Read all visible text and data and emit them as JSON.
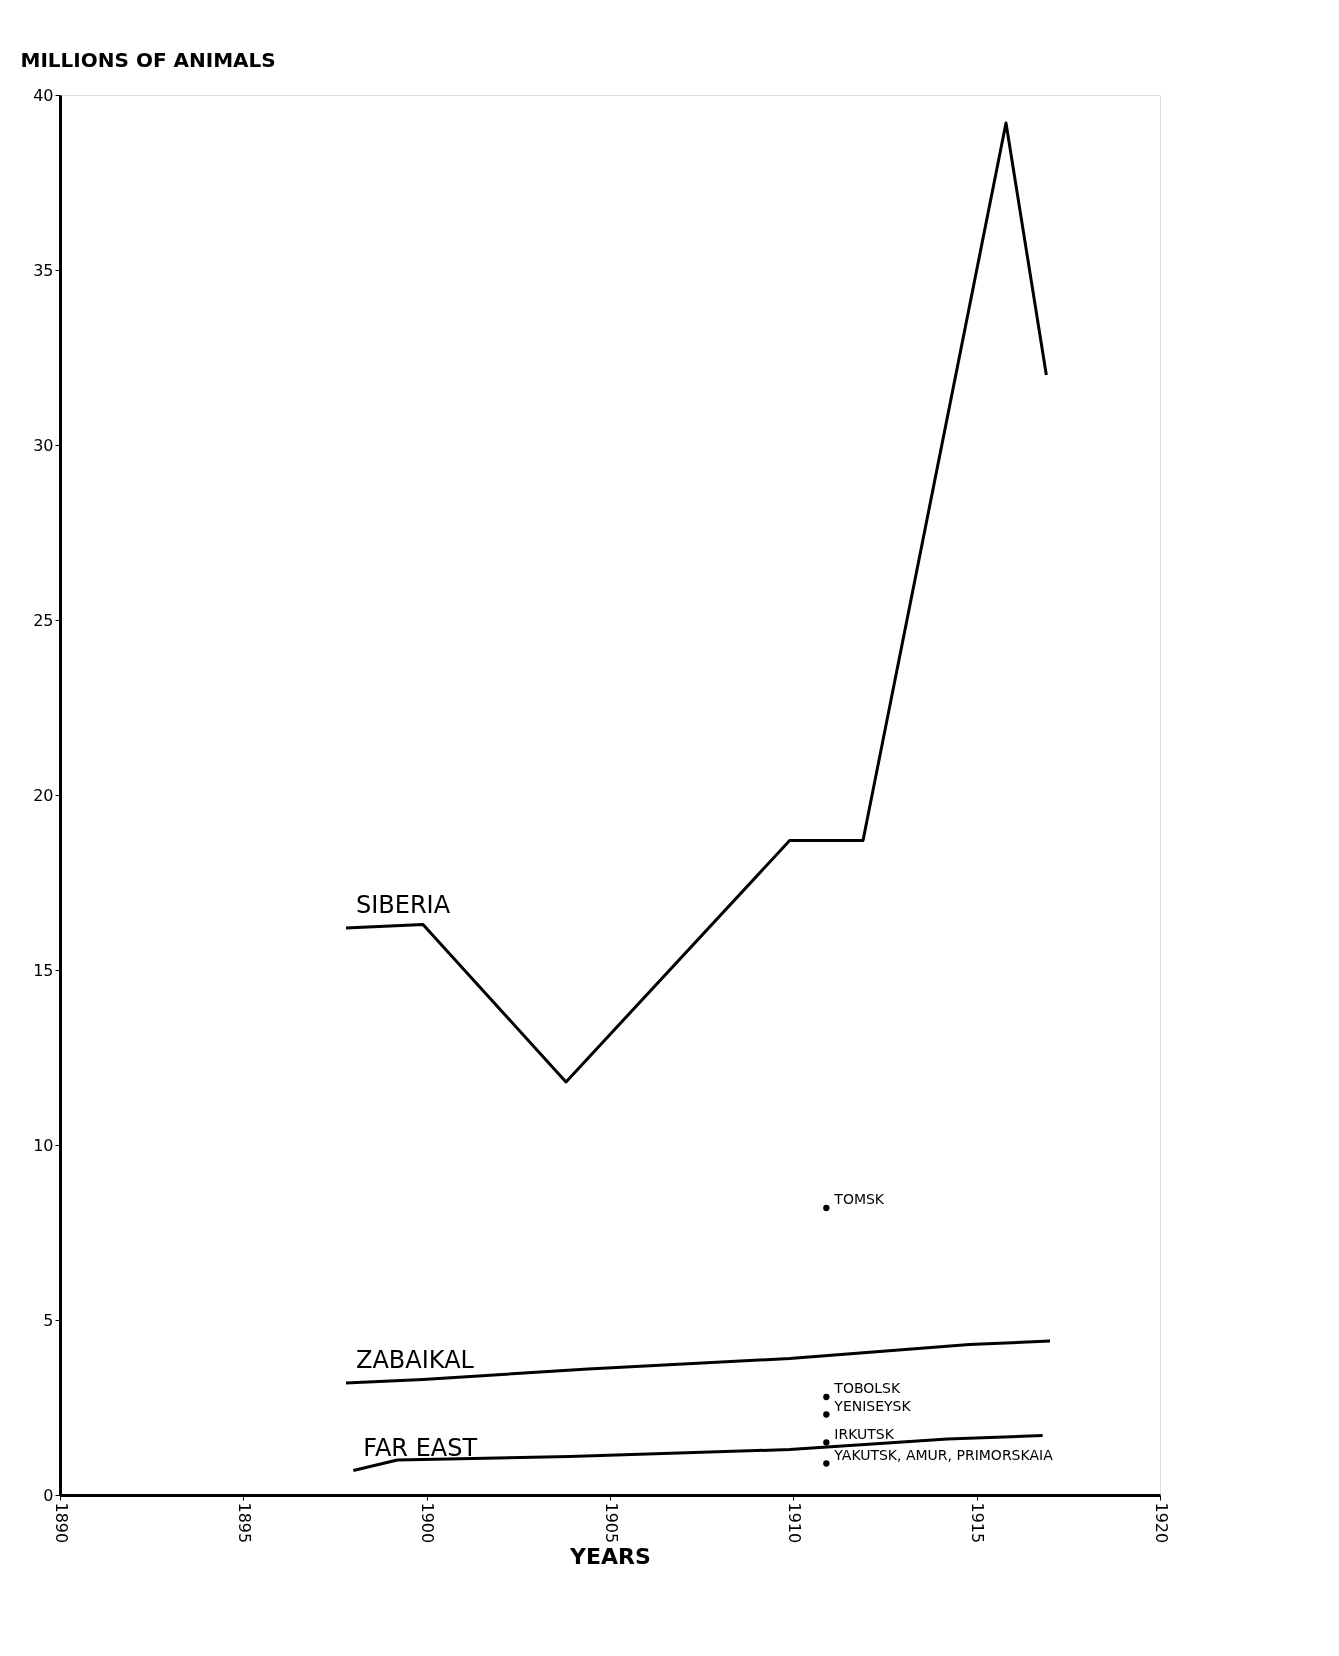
{
  "chart_data": {
    "type": "line",
    "xlabel": "YEARS",
    "ylabel": "MILLIONS OF ANIMALS",
    "xlim": [
      1890,
      1920
    ],
    "xticks": [
      1890,
      1895,
      1900,
      1905,
      1910,
      1915,
      1920
    ],
    "ylim": [
      0,
      40
    ],
    "yticks": [
      0,
      5,
      10,
      15,
      20,
      25,
      30,
      35,
      40
    ],
    "grid": false,
    "line_style": "solid",
    "series": [
      {
        "name": "SIBERIA",
        "marker": "none",
        "color": "#000000",
        "x": [
          1897.8,
          1899.9,
          1903.8,
          1909.9,
          1911.9,
          1915.8,
          1916.9
        ],
        "values": [
          16.2,
          16.3,
          11.8,
          18.7,
          18.7,
          39.2,
          32.0
        ]
      },
      {
        "name": "ZABAIKAL",
        "marker": "none",
        "color": "#000000",
        "x": [
          1897.8,
          1899.9,
          1904.4,
          1909.9,
          1914.8,
          1917.0
        ],
        "values": [
          3.2,
          3.3,
          3.6,
          3.9,
          4.3,
          4.4
        ]
      },
      {
        "name": "FAR EAST",
        "marker": "none",
        "color": "#000000",
        "x": [
          1898.0,
          1899.2,
          1903.9,
          1909.9,
          1914.2,
          1916.8
        ],
        "values": [
          0.7,
          1.0,
          1.1,
          1.3,
          1.6,
          1.7
        ]
      },
      {
        "name": "TOMSK",
        "type": "scatter",
        "marker": "circle",
        "color": "#000000",
        "x": [
          1910.9
        ],
        "values": [
          8.2
        ]
      },
      {
        "name": "TOBOLSK",
        "type": "scatter",
        "marker": "circle",
        "color": "#000000",
        "x": [
          1910.9
        ],
        "values": [
          2.8
        ]
      },
      {
        "name": "YENISEYSK",
        "type": "scatter",
        "marker": "circle",
        "color": "#000000",
        "x": [
          1910.9
        ],
        "values": [
          2.3
        ]
      },
      {
        "name": "IRKUTSK",
        "type": "scatter",
        "marker": "circle",
        "color": "#000000",
        "x": [
          1910.9
        ],
        "values": [
          1.5
        ]
      },
      {
        "name": "YAKUTSK, AMUR, PRIMORSKAIA",
        "type": "scatter",
        "marker": "circle",
        "color": "#000000",
        "x": [
          1910.9
        ],
        "values": [
          0.9
        ]
      }
    ]
  }
}
